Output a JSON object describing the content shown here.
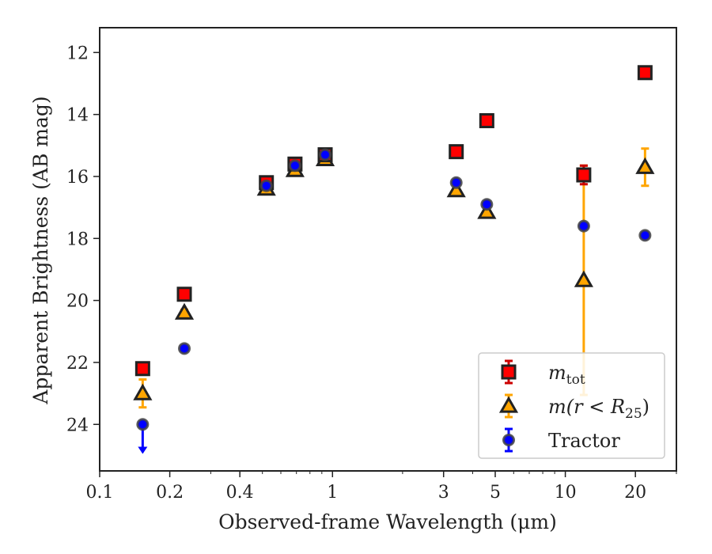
{
  "chart_data": {
    "type": "scatter",
    "title": "",
    "xlabel": "Observed-frame Wavelength (μm)",
    "ylabel": "Apparent Brightness (AB mag)",
    "xscale": "log",
    "xlim": [
      0.1,
      30
    ],
    "ylim": [
      25.5,
      11.2
    ],
    "y_inverted": true,
    "grid": false,
    "legend_position": "lower right",
    "x_ticks": [
      {
        "value": 0.1,
        "label": "0.1"
      },
      {
        "value": 0.2,
        "label": "0.2"
      },
      {
        "value": 0.4,
        "label": "0.4"
      },
      {
        "value": 1,
        "label": "1"
      },
      {
        "value": 3,
        "label": "3"
      },
      {
        "value": 5,
        "label": "5"
      },
      {
        "value": 10,
        "label": "10"
      },
      {
        "value": 20,
        "label": "20"
      }
    ],
    "y_ticks": [
      {
        "value": 12,
        "label": "12"
      },
      {
        "value": 14,
        "label": "14"
      },
      {
        "value": 16,
        "label": "16"
      },
      {
        "value": 18,
        "label": "18"
      },
      {
        "value": 20,
        "label": "20"
      },
      {
        "value": 22,
        "label": "22"
      },
      {
        "value": 24,
        "label": "24"
      }
    ],
    "series": [
      {
        "key": "mtot",
        "legend_main": "m",
        "legend_sub": "tot",
        "marker": "square",
        "color": "#ff0000",
        "edge_color": "#222222",
        "error_color": "#cc0000",
        "points": [
          {
            "x": 0.153,
            "y": 22.2,
            "err": 0.1
          },
          {
            "x": 0.231,
            "y": 19.8,
            "err": 0.08
          },
          {
            "x": 0.52,
            "y": 16.2,
            "err": 0.05
          },
          {
            "x": 0.69,
            "y": 15.6,
            "err": 0.05
          },
          {
            "x": 0.93,
            "y": 15.3,
            "err": 0.05
          },
          {
            "x": 3.4,
            "y": 15.2,
            "err": 0.05
          },
          {
            "x": 4.6,
            "y": 14.2,
            "err": 0.05
          },
          {
            "x": 12.0,
            "y": 15.95,
            "err": 0.3
          },
          {
            "x": 22.0,
            "y": 12.65,
            "err": 0.1
          }
        ]
      },
      {
        "key": "mr25",
        "legend_main": "m(r < R",
        "legend_sub": "25",
        "legend_tail": ")",
        "marker": "triangle",
        "color": "#ffa500",
        "edge_color": "#222222",
        "error_color": "#ffa500",
        "points": [
          {
            "x": 0.153,
            "y": 23.0,
            "err": 0.45
          },
          {
            "x": 0.231,
            "y": 20.4,
            "err": 0.1
          },
          {
            "x": 0.52,
            "y": 16.4,
            "err": 0.05
          },
          {
            "x": 0.69,
            "y": 15.8,
            "err": 0.05
          },
          {
            "x": 0.93,
            "y": 15.45,
            "err": 0.05
          },
          {
            "x": 3.4,
            "y": 16.45,
            "err": 0.05
          },
          {
            "x": 4.6,
            "y": 17.15,
            "err": 0.05
          },
          {
            "x": 12.0,
            "y": 19.35,
            "err": 3.7
          },
          {
            "x": 22.0,
            "y": 15.7,
            "err": 0.6
          }
        ]
      },
      {
        "key": "tractor",
        "legend_main": "Tractor",
        "marker": "circle",
        "color": "#0000ff",
        "edge_color": "#444444",
        "error_color": "#0000ff",
        "points": [
          {
            "x": 0.153,
            "y": 24.0,
            "upper_limit": true
          },
          {
            "x": 0.231,
            "y": 21.55,
            "err": 0.05
          },
          {
            "x": 0.52,
            "y": 16.3,
            "err": 0.03
          },
          {
            "x": 0.69,
            "y": 15.65,
            "err": 0.03
          },
          {
            "x": 0.93,
            "y": 15.3,
            "err": 0.03
          },
          {
            "x": 3.4,
            "y": 16.2,
            "err": 0.03
          },
          {
            "x": 4.6,
            "y": 16.9,
            "err": 0.03
          },
          {
            "x": 12.0,
            "y": 17.6,
            "err": 0.05
          },
          {
            "x": 22.0,
            "y": 17.9,
            "err": 0.05
          }
        ]
      }
    ]
  }
}
